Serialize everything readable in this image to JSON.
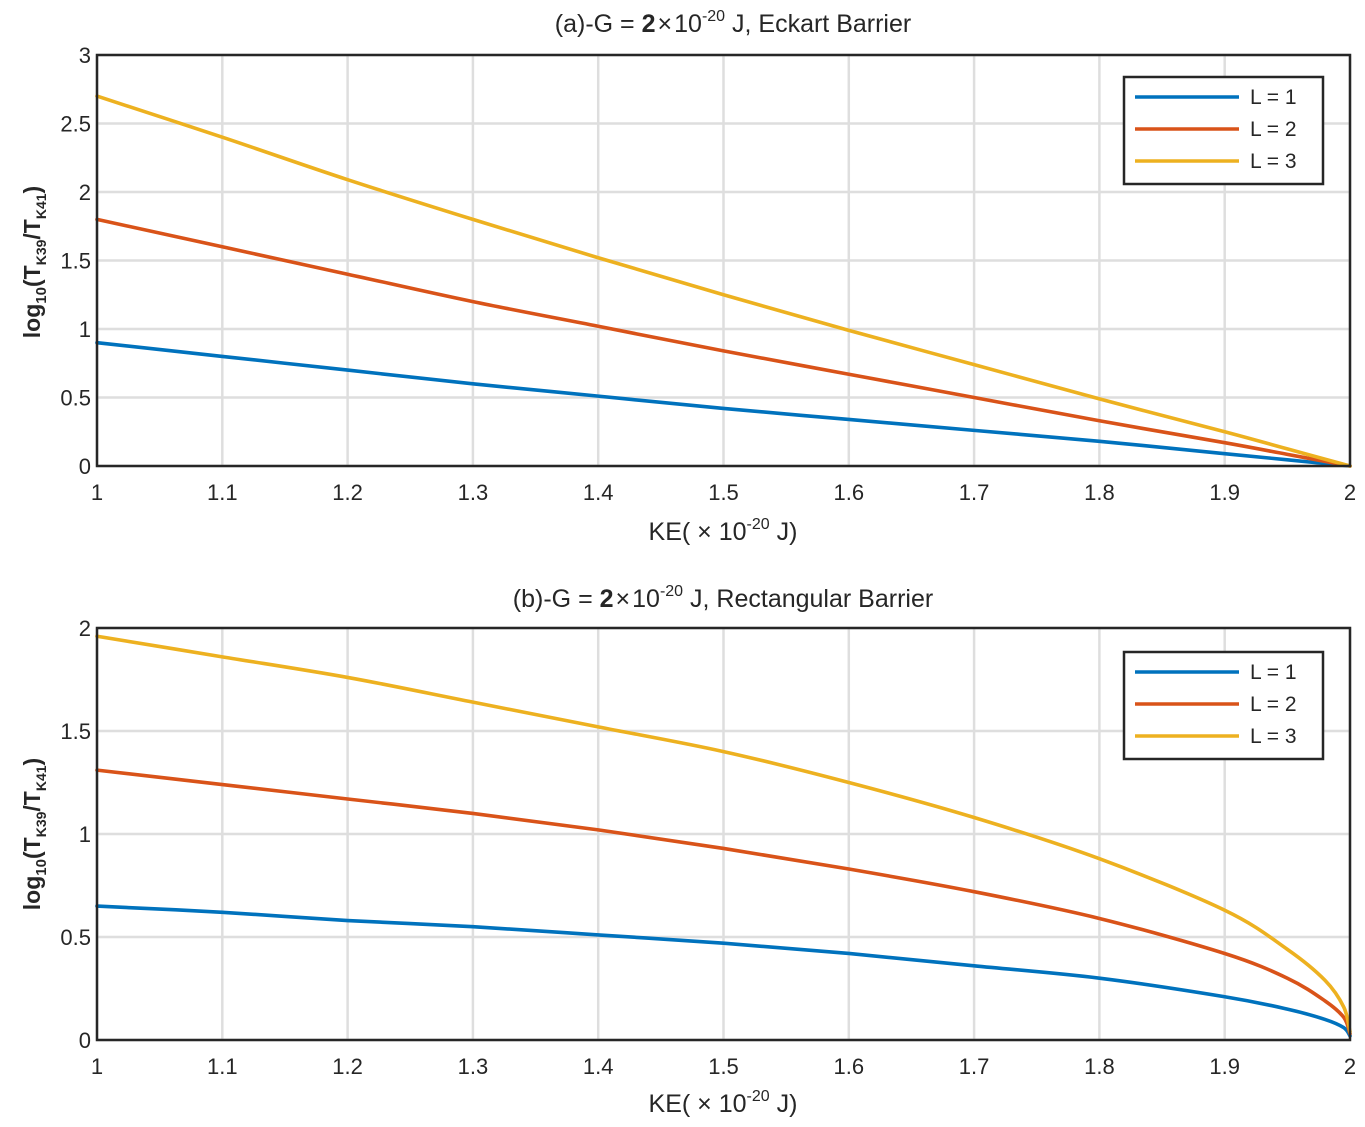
{
  "chart_data": [
    {
      "type": "line",
      "title_prefix": "(a)-G  =  ",
      "title_mantissa": "2",
      "title_times": "×",
      "title_base": "10",
      "title_exp": "-20",
      "title_suffix": " J,  Eckart  Barrier",
      "xlabel_prefix": "KE( ",
      "xlabel_times": "×",
      "xlabel_base": "  10",
      "xlabel_exp": "-20",
      "xlabel_suffix": "  J)",
      "ylabel_log": "log",
      "ylabel_logsub": "10",
      "ylabel_open": "(T",
      "ylabel_sub1": "K39",
      "ylabel_mid": "/T",
      "ylabel_sub2": "K41",
      "ylabel_close": ")",
      "xlim": [
        1,
        2
      ],
      "ylim": [
        0,
        3
      ],
      "xticks": [
        1,
        1.1,
        1.2,
        1.3,
        1.4,
        1.5,
        1.6,
        1.7,
        1.8,
        1.9,
        2
      ],
      "yticks": [
        0,
        0.5,
        1,
        1.5,
        2,
        2.5,
        3
      ],
      "grid": true,
      "legend_position": "top-right",
      "x": [
        1,
        1.1,
        1.2,
        1.3,
        1.4,
        1.5,
        1.6,
        1.7,
        1.8,
        1.9,
        1.95,
        2
      ],
      "series": [
        {
          "name": "L = 1",
          "color": "#0072BD",
          "values": [
            0.9,
            0.8,
            0.7,
            0.6,
            0.51,
            0.42,
            0.34,
            0.26,
            0.18,
            0.09,
            0.045,
            0
          ]
        },
        {
          "name": "L = 2",
          "color": "#D95319",
          "values": [
            1.8,
            1.6,
            1.4,
            1.2,
            1.02,
            0.84,
            0.67,
            0.5,
            0.33,
            0.17,
            0.085,
            0
          ]
        },
        {
          "name": "L = 3",
          "color": "#EDB120",
          "values": [
            2.7,
            2.4,
            2.09,
            1.8,
            1.52,
            1.25,
            0.99,
            0.74,
            0.49,
            0.25,
            0.125,
            0
          ]
        }
      ]
    },
    {
      "type": "line",
      "title_prefix": "(b)-G  =  ",
      "title_mantissa": "2",
      "title_times": "×",
      "title_base": "10",
      "title_exp": "-20",
      "title_suffix": " J,  Rectangular  Barrier",
      "xlabel_prefix": "KE( ",
      "xlabel_times": "×",
      "xlabel_base": "  10",
      "xlabel_exp": "-20",
      "xlabel_suffix": "  J)",
      "ylabel_log": "log",
      "ylabel_logsub": "10",
      "ylabel_open": "(T",
      "ylabel_sub1": "K39",
      "ylabel_mid": "/T",
      "ylabel_sub2": "K41",
      "ylabel_close": ")",
      "xlim": [
        1,
        2
      ],
      "ylim": [
        0,
        2
      ],
      "xticks": [
        1,
        1.1,
        1.2,
        1.3,
        1.4,
        1.5,
        1.6,
        1.7,
        1.8,
        1.9,
        2
      ],
      "yticks": [
        0,
        0.5,
        1,
        1.5,
        2
      ],
      "grid": true,
      "legend_position": "top-right",
      "x": [
        1,
        1.1,
        1.2,
        1.3,
        1.4,
        1.5,
        1.6,
        1.7,
        1.8,
        1.9,
        1.95,
        1.98,
        1.995,
        2
      ],
      "series": [
        {
          "name": "L = 1",
          "color": "#0072BD",
          "values": [
            0.65,
            0.62,
            0.58,
            0.55,
            0.51,
            0.47,
            0.42,
            0.36,
            0.3,
            0.21,
            0.15,
            0.1,
            0.06,
            0.02
          ]
        },
        {
          "name": "L = 2",
          "color": "#D95319",
          "values": [
            1.31,
            1.24,
            1.17,
            1.1,
            1.02,
            0.93,
            0.83,
            0.72,
            0.59,
            0.42,
            0.3,
            0.19,
            0.11,
            0.03
          ]
        },
        {
          "name": "L = 3",
          "color": "#EDB120",
          "values": [
            1.96,
            1.86,
            1.76,
            1.64,
            1.52,
            1.4,
            1.25,
            1.08,
            0.88,
            0.63,
            0.44,
            0.29,
            0.16,
            0.04
          ]
        }
      ]
    }
  ]
}
